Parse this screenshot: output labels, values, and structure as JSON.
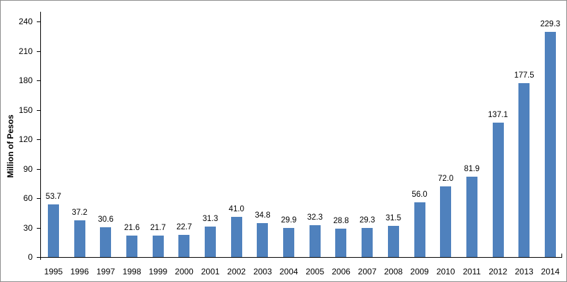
{
  "chart_data": {
    "type": "bar",
    "title": "",
    "xlabel": "",
    "ylabel": "Million of Pesos",
    "categories": [
      "1995",
      "1996",
      "1997",
      "1998",
      "1999",
      "2000",
      "2001",
      "2002",
      "2003",
      "2004",
      "2005",
      "2006",
      "2007",
      "2008",
      "2009",
      "2010",
      "2011",
      "2012",
      "2013",
      "2014"
    ],
    "values": [
      53.7,
      37.2,
      30.6,
      21.6,
      21.7,
      22.7,
      31.3,
      41.0,
      34.8,
      29.9,
      32.3,
      28.8,
      29.3,
      31.5,
      56.0,
      72.0,
      81.9,
      137.1,
      177.5,
      229.3
    ],
    "value_labels": [
      "53.7",
      "37.2",
      "30.6",
      "21.6",
      "21.7",
      "22.7",
      "31.3",
      "41.0",
      "34.8",
      "29.9",
      "32.3",
      "28.8",
      "29.3",
      "31.5",
      "56.0",
      "72.0",
      "81.9",
      "137.1",
      "177.5",
      "229.3"
    ],
    "y_ticks": [
      0,
      30,
      60,
      90,
      120,
      150,
      180,
      210,
      240
    ],
    "ylim": [
      0,
      250
    ],
    "grid": false,
    "legend": false,
    "bar_color": "#4F81BD",
    "axis_color": "#000000",
    "label_color": "#000000",
    "frame_border_color": "#8C8C8C",
    "background_color": "#FFFFFF"
  }
}
